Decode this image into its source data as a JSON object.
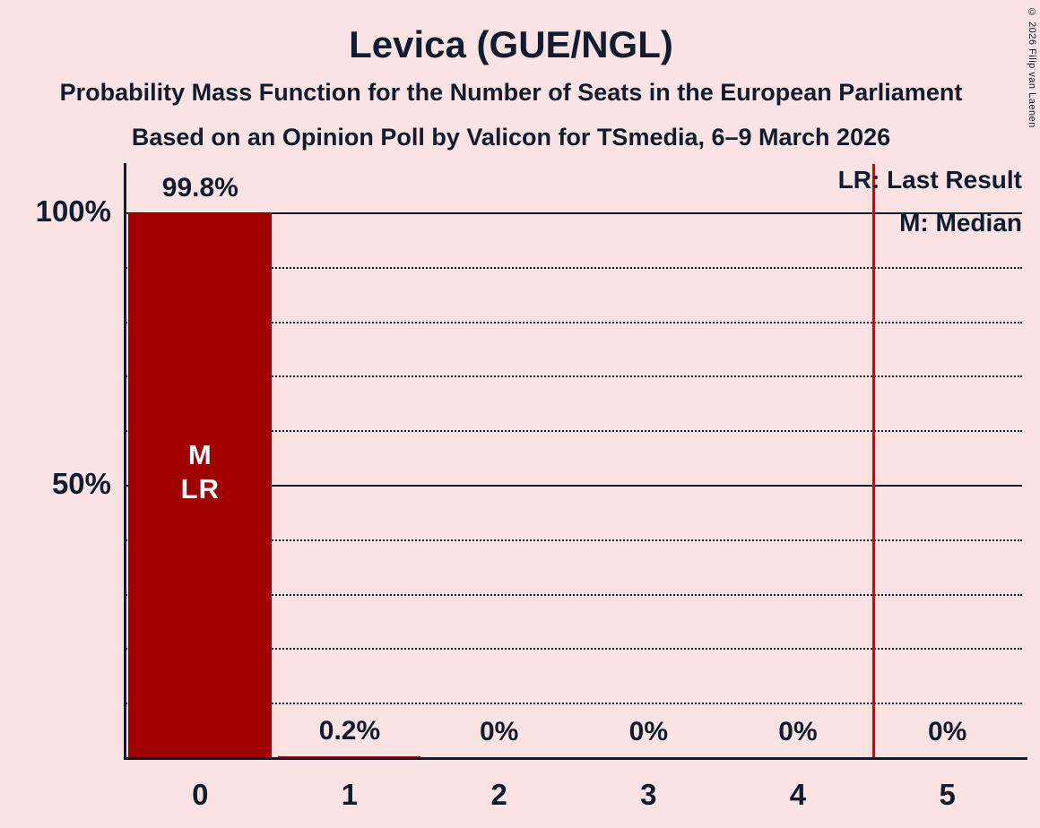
{
  "title": "Levica (GUE/NGL)",
  "subtitles": [
    "Probability Mass Function for the Number of Seats in the European Parliament",
    "Based on an Opinion Poll by Valicon for TSmedia, 6–9 March 2026"
  ],
  "legend": {
    "last_result": "LR: Last Result",
    "median": "M: Median"
  },
  "copyright": "© 2026 Filip van Laenen",
  "chart_data": {
    "type": "bar",
    "title": "Levica (GUE/NGL)",
    "categories": [
      "0",
      "1",
      "2",
      "3",
      "4",
      "5"
    ],
    "values": [
      99.8,
      0.2,
      0,
      0,
      0,
      0
    ],
    "value_labels": [
      "99.8%",
      "0.2%",
      "0%",
      "0%",
      "0%",
      "0%"
    ],
    "ytick_labels": [
      "100%",
      "50%"
    ],
    "ylim": [
      0,
      100
    ],
    "gridlines_dotted_pct": [
      10,
      20,
      30,
      40,
      60,
      70,
      80,
      90
    ],
    "gridlines_solid_pct": [
      50,
      100
    ],
    "bar_annotations": [
      {
        "index": 0,
        "lines": [
          "M",
          "LR"
        ]
      }
    ],
    "last_result_marker_x": 4.5,
    "legend_position": "top-right",
    "grid": true,
    "colors": {
      "background": "#FBE3E3",
      "bar": "#A00000",
      "text": "#101C30",
      "last_result_line": "#E00000",
      "bar_label": "#FFFFFF"
    }
  }
}
